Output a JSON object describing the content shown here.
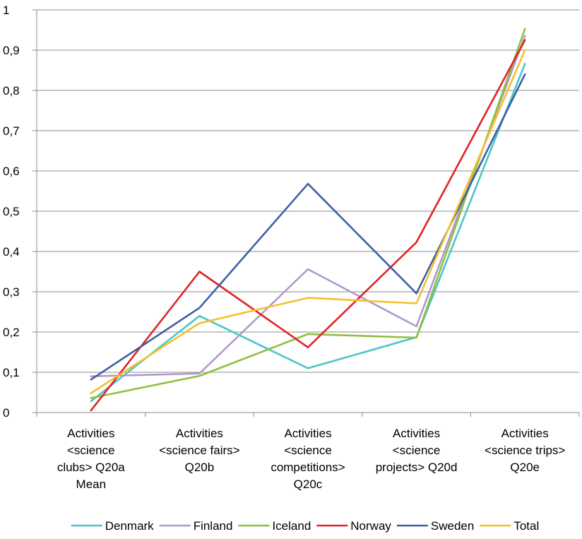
{
  "chart_data": {
    "type": "line",
    "title": "",
    "xlabel": "",
    "ylabel": "",
    "ylim": [
      0,
      1
    ],
    "yticks": [
      "0",
      "0,1",
      "0,2",
      "0,3",
      "0,4",
      "0,5",
      "0,6",
      "0,7",
      "0,8",
      "0,9",
      "1"
    ],
    "categories": [
      [
        "Activities",
        "<science",
        "clubs> Q20a",
        "Mean"
      ],
      [
        "Activities",
        "<science fairs>",
        "Q20b"
      ],
      [
        "Activities",
        "<science",
        "competitions>",
        "Q20c"
      ],
      [
        "Activities",
        "<science",
        "projects> Q20d"
      ],
      [
        "Activities",
        "<science trips>",
        "Q20e"
      ]
    ],
    "grid": true,
    "legend_position": "bottom",
    "series": [
      {
        "name": "Denmark",
        "color": "#4BC5CC",
        "values": [
          0.028,
          0.24,
          0.11,
          0.187,
          0.866
        ]
      },
      {
        "name": "Finland",
        "color": "#B09ACB",
        "values": [
          0.09,
          0.097,
          0.356,
          0.214,
          0.935
        ]
      },
      {
        "name": "Iceland",
        "color": "#8DC03F",
        "values": [
          0.036,
          0.091,
          0.195,
          0.186,
          0.953
        ]
      },
      {
        "name": "Norway",
        "color": "#E02424",
        "values": [
          0.005,
          0.35,
          0.162,
          0.423,
          0.925
        ]
      },
      {
        "name": "Sweden",
        "color": "#3D5EA8",
        "values": [
          0.082,
          0.26,
          0.568,
          0.296,
          0.84
        ]
      },
      {
        "name": "Total",
        "color": "#F5C02C",
        "values": [
          0.048,
          0.222,
          0.285,
          0.271,
          0.9
        ]
      }
    ]
  }
}
